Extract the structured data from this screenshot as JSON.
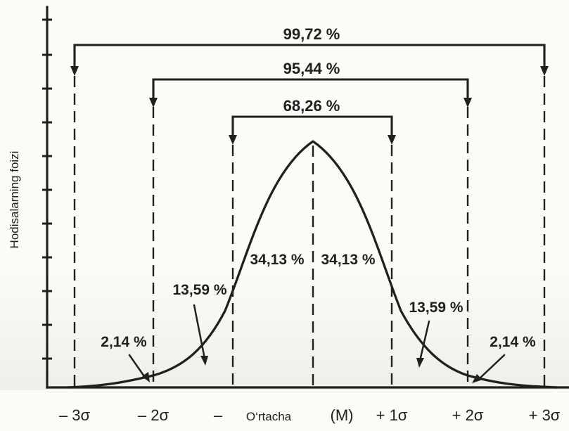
{
  "figure": {
    "axis_title": "Hodisalarning foizi",
    "coverage_labels": {
      "outer": "99,72 %",
      "middle": "95,44 %",
      "inner": "68,26 %"
    },
    "region_labels": {
      "left_center": "34,13 %",
      "right_center": "34,13 %",
      "left_middle": "13,59 %",
      "right_middle": "13,59 %",
      "left_tail": "2,14 %",
      "right_tail": "2,14 %"
    },
    "bottom_labels": {
      "minus3": "– 3σ",
      "minus2": "– 2σ",
      "minus1": "–",
      "mean_word": "O‘rtacha",
      "mean_symbol": "(M)",
      "plus1": "+ 1σ",
      "plus2": "+ 2σ",
      "plus3": "+ 3σ"
    }
  }
}
